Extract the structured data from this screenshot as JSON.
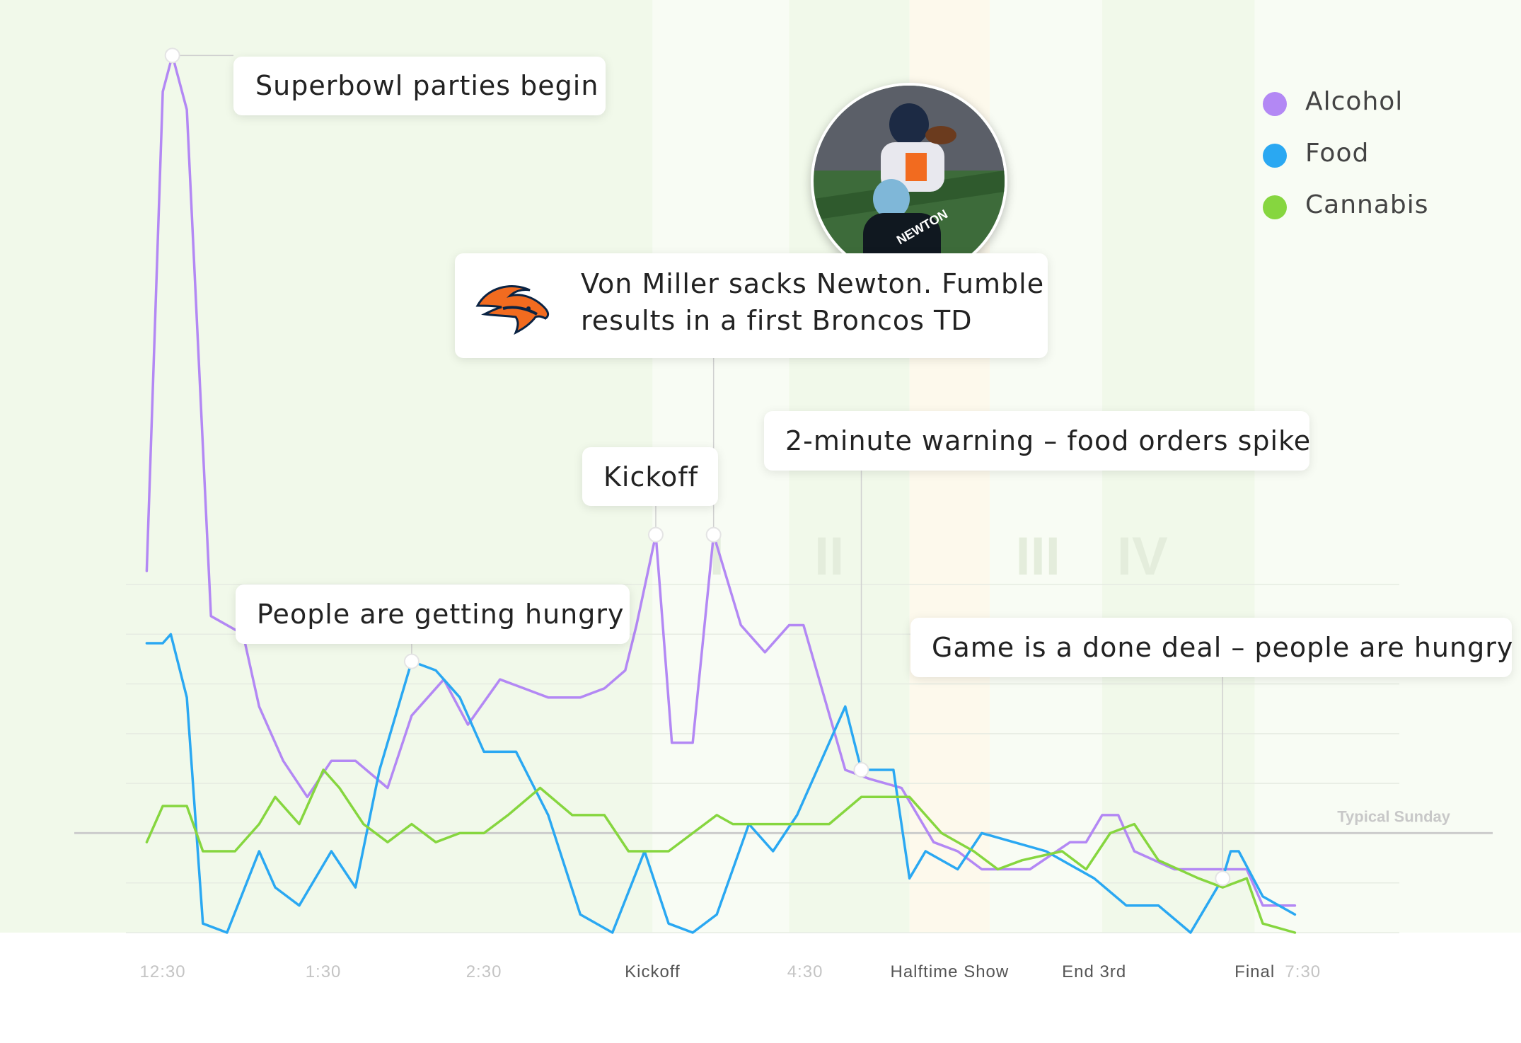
{
  "legend": [
    {
      "label": "Alcohol",
      "color": "#b388f4"
    },
    {
      "label": "Food",
      "color": "#2aa8f2"
    },
    {
      "label": "Cannabis",
      "color": "#86d63f"
    }
  ],
  "annotations": {
    "parties": "Superbowl parties begin",
    "hungry": "People are getting hungry",
    "kickoff": "Kickoff",
    "sack_line1": "Von Miller sacks Newton. Fumble",
    "sack_line2": "results in a first Broncos TD",
    "warning": "2-minute warning – food orders spike",
    "done": "Game is a done deal – people are hungry"
  },
  "photo_icon": "football-tackle-photo",
  "team_logo_icon": "broncos-logo",
  "chart_data": {
    "type": "line",
    "title": "",
    "xlabel": "",
    "ylabel": "",
    "reference_line": "Typical Sunday",
    "quarters": [
      "I",
      "II",
      "III",
      "IV"
    ],
    "x_ticks": [
      {
        "label": "12:30",
        "x": 0,
        "emphasis": false
      },
      {
        "label": "1:30",
        "x": 1,
        "emphasis": false
      },
      {
        "label": "2:30",
        "x": 2,
        "emphasis": false
      },
      {
        "label": "Kickoff",
        "x": 3.05,
        "emphasis": true
      },
      {
        "label": "4:30",
        "x": 4,
        "emphasis": false
      },
      {
        "label": "Halftime Show",
        "x": 4.9,
        "emphasis": true
      },
      {
        "label": "End 3rd",
        "x": 5.8,
        "emphasis": true
      },
      {
        "label": "Final",
        "x": 6.8,
        "emphasis": true
      },
      {
        "label": "7:30",
        "x": 7.1,
        "emphasis": false
      }
    ],
    "bands": [
      {
        "from": -0.15,
        "to": 3.05,
        "color": "#f1f9ea"
      },
      {
        "from": 3.05,
        "to": 3.9,
        "color": "#f8fcf4"
      },
      {
        "from": 3.9,
        "to": 4.65,
        "color": "#f1f9ea"
      },
      {
        "from": 4.65,
        "to": 5.15,
        "color": "#fdf9ec"
      },
      {
        "from": 5.15,
        "to": 5.85,
        "color": "#f8fcf4"
      },
      {
        "from": 5.85,
        "to": 6.8,
        "color": "#f1f9ea"
      },
      {
        "from": 6.8,
        "to": 7.7,
        "color": "#f8fcf4"
      }
    ],
    "xlim": [
      -0.15,
      7.7
    ],
    "ylim": [
      0,
      100
    ],
    "typical": 11,
    "series": [
      {
        "name": "Alcohol",
        "color": "#b388f4",
        "x": [
          -0.1,
          0.0,
          0.06,
          0.15,
          0.3,
          0.5,
          0.6,
          0.75,
          0.9,
          1.05,
          1.2,
          1.4,
          1.55,
          1.75,
          1.9,
          2.1,
          2.25,
          2.4,
          2.6,
          2.75,
          2.88,
          2.95,
          3.07,
          3.17,
          3.3,
          3.43,
          3.6,
          3.75,
          3.9,
          3.99,
          4.25,
          4.4,
          4.6,
          4.8,
          4.95,
          5.1,
          5.4,
          5.65,
          5.75,
          5.85,
          5.95,
          6.05,
          6.3,
          6.55,
          6.65,
          6.75,
          6.85,
          7.05
        ],
        "y": [
          40,
          93,
          97,
          91,
          35,
          33,
          25,
          19,
          15,
          19,
          19,
          16,
          24,
          28,
          23,
          28,
          27,
          26,
          26,
          27,
          29,
          34,
          44,
          21,
          21,
          44,
          34,
          31,
          34,
          34,
          18,
          17,
          16,
          10,
          9,
          7,
          7,
          10,
          10,
          13,
          13,
          9,
          7,
          7,
          7,
          7,
          3,
          3
        ]
      },
      {
        "name": "Food",
        "color": "#2aa8f2",
        "x": [
          -0.1,
          0.0,
          0.05,
          0.15,
          0.25,
          0.4,
          0.6,
          0.7,
          0.85,
          1.05,
          1.2,
          1.35,
          1.55,
          1.7,
          1.85,
          2.0,
          2.2,
          2.4,
          2.6,
          2.8,
          3.0,
          3.15,
          3.3,
          3.45,
          3.65,
          3.8,
          3.95,
          4.1,
          4.25,
          4.35,
          4.55,
          4.65,
          4.75,
          4.95,
          5.1,
          5.3,
          5.5,
          5.8,
          6.0,
          6.2,
          6.4,
          6.5,
          6.6,
          6.65,
          6.7,
          6.85,
          7.05
        ],
        "y": [
          32,
          32,
          33,
          26,
          1,
          0,
          9,
          5,
          3,
          9,
          5,
          18,
          30,
          29,
          26,
          20,
          20,
          13,
          2,
          0,
          9,
          1,
          0,
          2,
          12,
          9,
          13,
          19,
          25,
          18,
          18,
          6,
          9,
          7,
          11,
          10,
          9,
          6,
          3,
          3,
          0,
          3,
          6,
          9,
          9,
          4,
          2
        ]
      },
      {
        "name": "Cannabis",
        "color": "#86d63f",
        "x": [
          -0.1,
          0.0,
          0.15,
          0.25,
          0.45,
          0.6,
          0.7,
          0.85,
          1.0,
          1.1,
          1.25,
          1.4,
          1.55,
          1.7,
          1.85,
          2.0,
          2.15,
          2.35,
          2.55,
          2.75,
          2.9,
          3.0,
          3.15,
          3.3,
          3.45,
          3.55,
          3.7,
          3.85,
          4.0,
          4.15,
          4.35,
          4.5,
          4.65,
          4.85,
          5.05,
          5.2,
          5.35,
          5.6,
          5.75,
          5.9,
          6.05,
          6.2,
          6.45,
          6.6,
          6.75,
          6.85,
          7.05
        ],
        "y": [
          10,
          14,
          14,
          9,
          9,
          12,
          15,
          12,
          18,
          16,
          12,
          10,
          12,
          10,
          11,
          11,
          13,
          16,
          13,
          13,
          9,
          9,
          9,
          11,
          13,
          12,
          12,
          12,
          12,
          12,
          15,
          15,
          15,
          11,
          9,
          7,
          8,
          9,
          7,
          11,
          12,
          8,
          6,
          5,
          6,
          1,
          0
        ]
      }
    ]
  }
}
